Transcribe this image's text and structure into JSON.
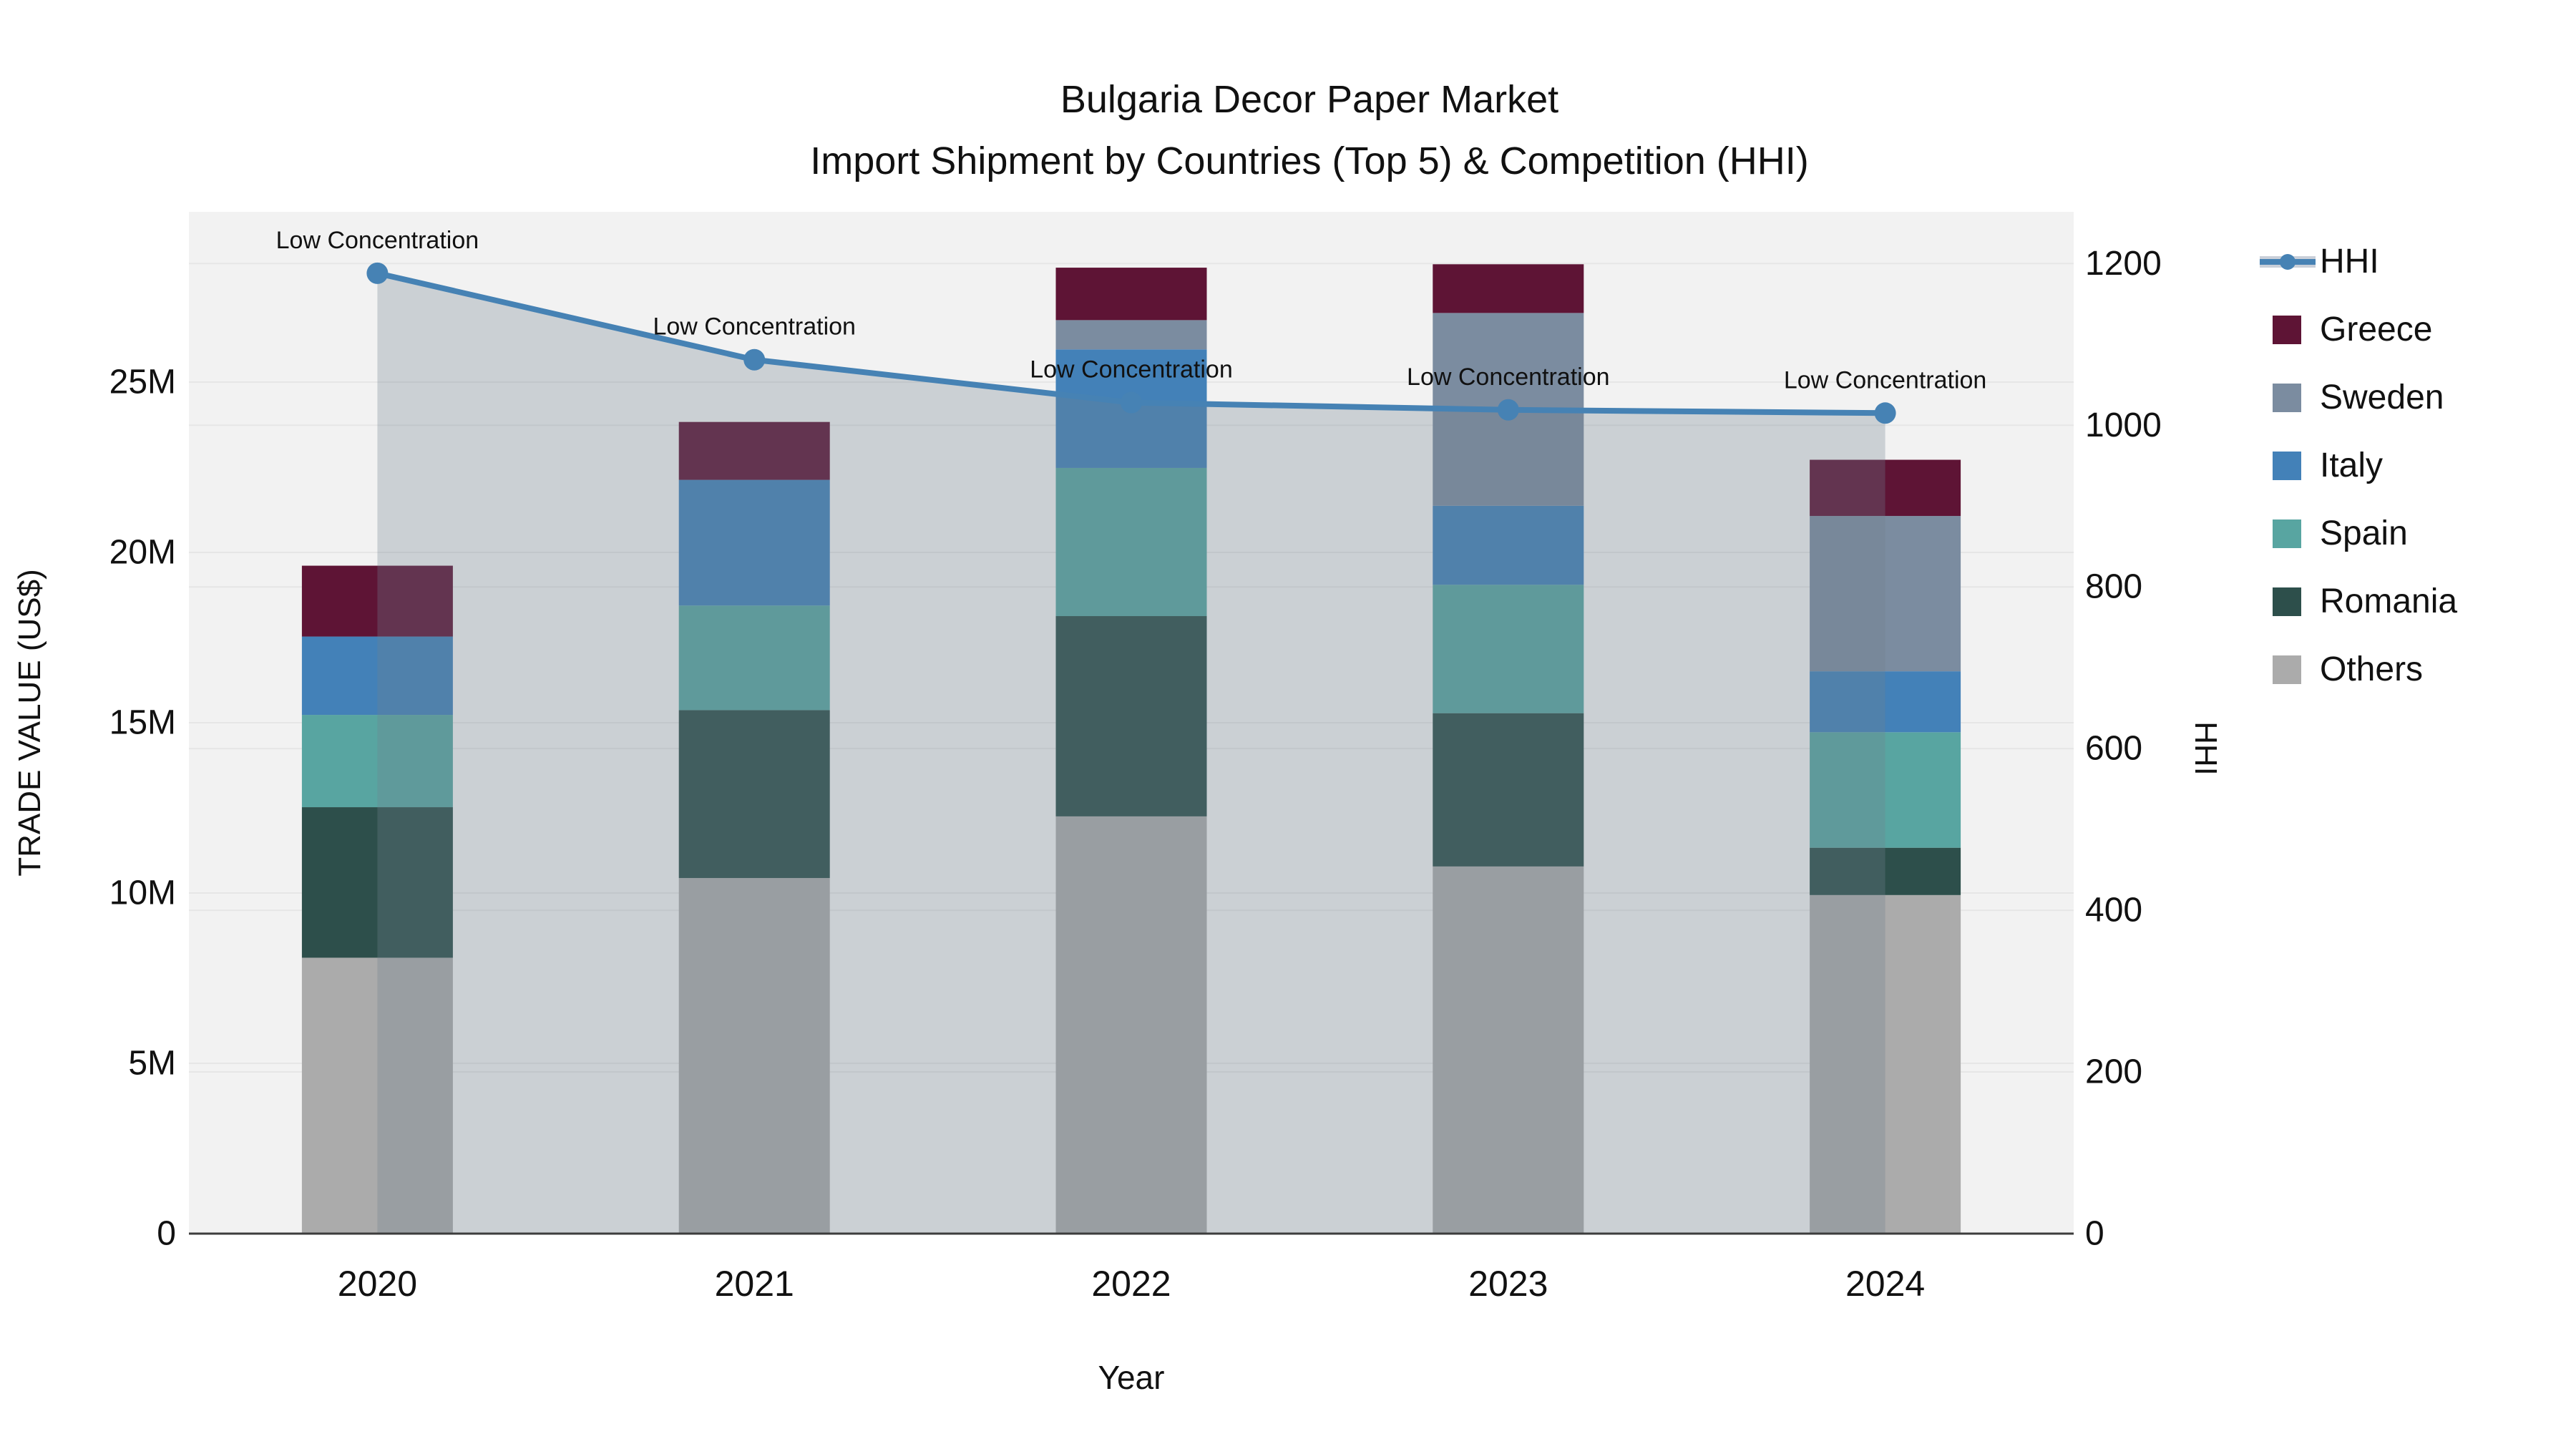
{
  "title": {
    "line1": "Bulgaria Decor Paper Market",
    "line2": "Import Shipment by Countries (Top 5) & Competition (HHI)"
  },
  "colors": {
    "plot_background": "#f2f2f2",
    "gridline": "#e6e6e6",
    "axis_line": "#3c3c3c",
    "text": "#111111",
    "hhi_line": "#4682b4",
    "hhi_area_fill": "rgba(112,128,144,0.30)"
  },
  "axes": {
    "x": {
      "title": "Year",
      "categories": [
        "2020",
        "2021",
        "2022",
        "2023",
        "2024"
      ]
    },
    "y_left": {
      "title": "TRADE VALUE (US$)",
      "tick_labels": [
        "0",
        "5M",
        "10M",
        "15M",
        "20M",
        "25M"
      ],
      "tick_values": [
        0,
        5000000,
        10000000,
        15000000,
        20000000,
        25000000
      ],
      "range": [
        0,
        30000000
      ]
    },
    "y_right": {
      "title": "HHI",
      "tick_labels": [
        "0",
        "200",
        "400",
        "600",
        "800",
        "1000",
        "1200"
      ],
      "tick_values": [
        0,
        200,
        400,
        600,
        800,
        1000,
        1200
      ],
      "range": [
        0,
        1264
      ]
    }
  },
  "legend": {
    "items": [
      {
        "label": "HHI",
        "type": "line",
        "color": "#4682b4"
      },
      {
        "label": "Greece",
        "type": "swatch",
        "color": "#5e1435"
      },
      {
        "label": "Sweden",
        "type": "swatch",
        "color": "#7b8ca0"
      },
      {
        "label": "Italy",
        "type": "swatch",
        "color": "#4381b8"
      },
      {
        "label": "Spain",
        "type": "swatch",
        "color": "#58a5a1"
      },
      {
        "label": "Romania",
        "type": "swatch",
        "color": "#2d4f4b"
      },
      {
        "label": "Others",
        "type": "swatch",
        "color": "#ababab"
      }
    ]
  },
  "chart_data": {
    "type": "bar",
    "subtype": "stacked-bars-with-line-overlay",
    "title": "Bulgaria Decor Paper Market — Import Shipment by Countries (Top 5) & Competition (HHI)",
    "xlabel": "Year",
    "ylabel_left": "TRADE VALUE (US$)",
    "ylabel_right": "HHI",
    "categories": [
      "2020",
      "2021",
      "2022",
      "2023",
      "2024"
    ],
    "bar_series_bottom_to_top": [
      {
        "name": "Others",
        "color": "#ababab",
        "values_usd": [
          8100000,
          10440000,
          12250000,
          10780000,
          9940000
        ]
      },
      {
        "name": "Romania",
        "color": "#2d4f4b",
        "values_usd": [
          4420000,
          4930000,
          5880000,
          4500000,
          1390000
        ]
      },
      {
        "name": "Spain",
        "color": "#58a5a1",
        "values_usd": [
          2710000,
          3070000,
          4350000,
          3770000,
          3390000
        ]
      },
      {
        "name": "Italy",
        "color": "#4381b8",
        "values_usd": [
          2300000,
          3690000,
          3480000,
          2320000,
          1790000
        ]
      },
      {
        "name": "Sweden",
        "color": "#7b8ca0",
        "values_usd": [
          0,
          0,
          860000,
          5660000,
          4560000
        ]
      },
      {
        "name": "Greece",
        "color": "#5e1435",
        "values_usd": [
          2080000,
          1700000,
          1540000,
          1430000,
          1650000
        ]
      }
    ],
    "bar_totals_usd": [
      19610000,
      23830000,
      28360000,
      28460000,
      22730000
    ],
    "line_series": {
      "name": "HHI",
      "color": "#4682b4",
      "values": [
        1188,
        1081,
        1028,
        1019,
        1015
      ],
      "area_fill": "rgba(112,128,144,0.30)",
      "axis": "right"
    },
    "annotations": [
      {
        "category_index": 0,
        "text": "Low Concentration"
      },
      {
        "category_index": 1,
        "text": "Low Concentration"
      },
      {
        "category_index": 2,
        "text": "Low Concentration"
      },
      {
        "category_index": 3,
        "text": "Low Concentration"
      },
      {
        "category_index": 4,
        "text": "Low Concentration"
      }
    ],
    "ylim_left": [
      0,
      30000000
    ],
    "ylim_right": [
      0,
      1264
    ],
    "grid": true,
    "legend_position": "right"
  }
}
